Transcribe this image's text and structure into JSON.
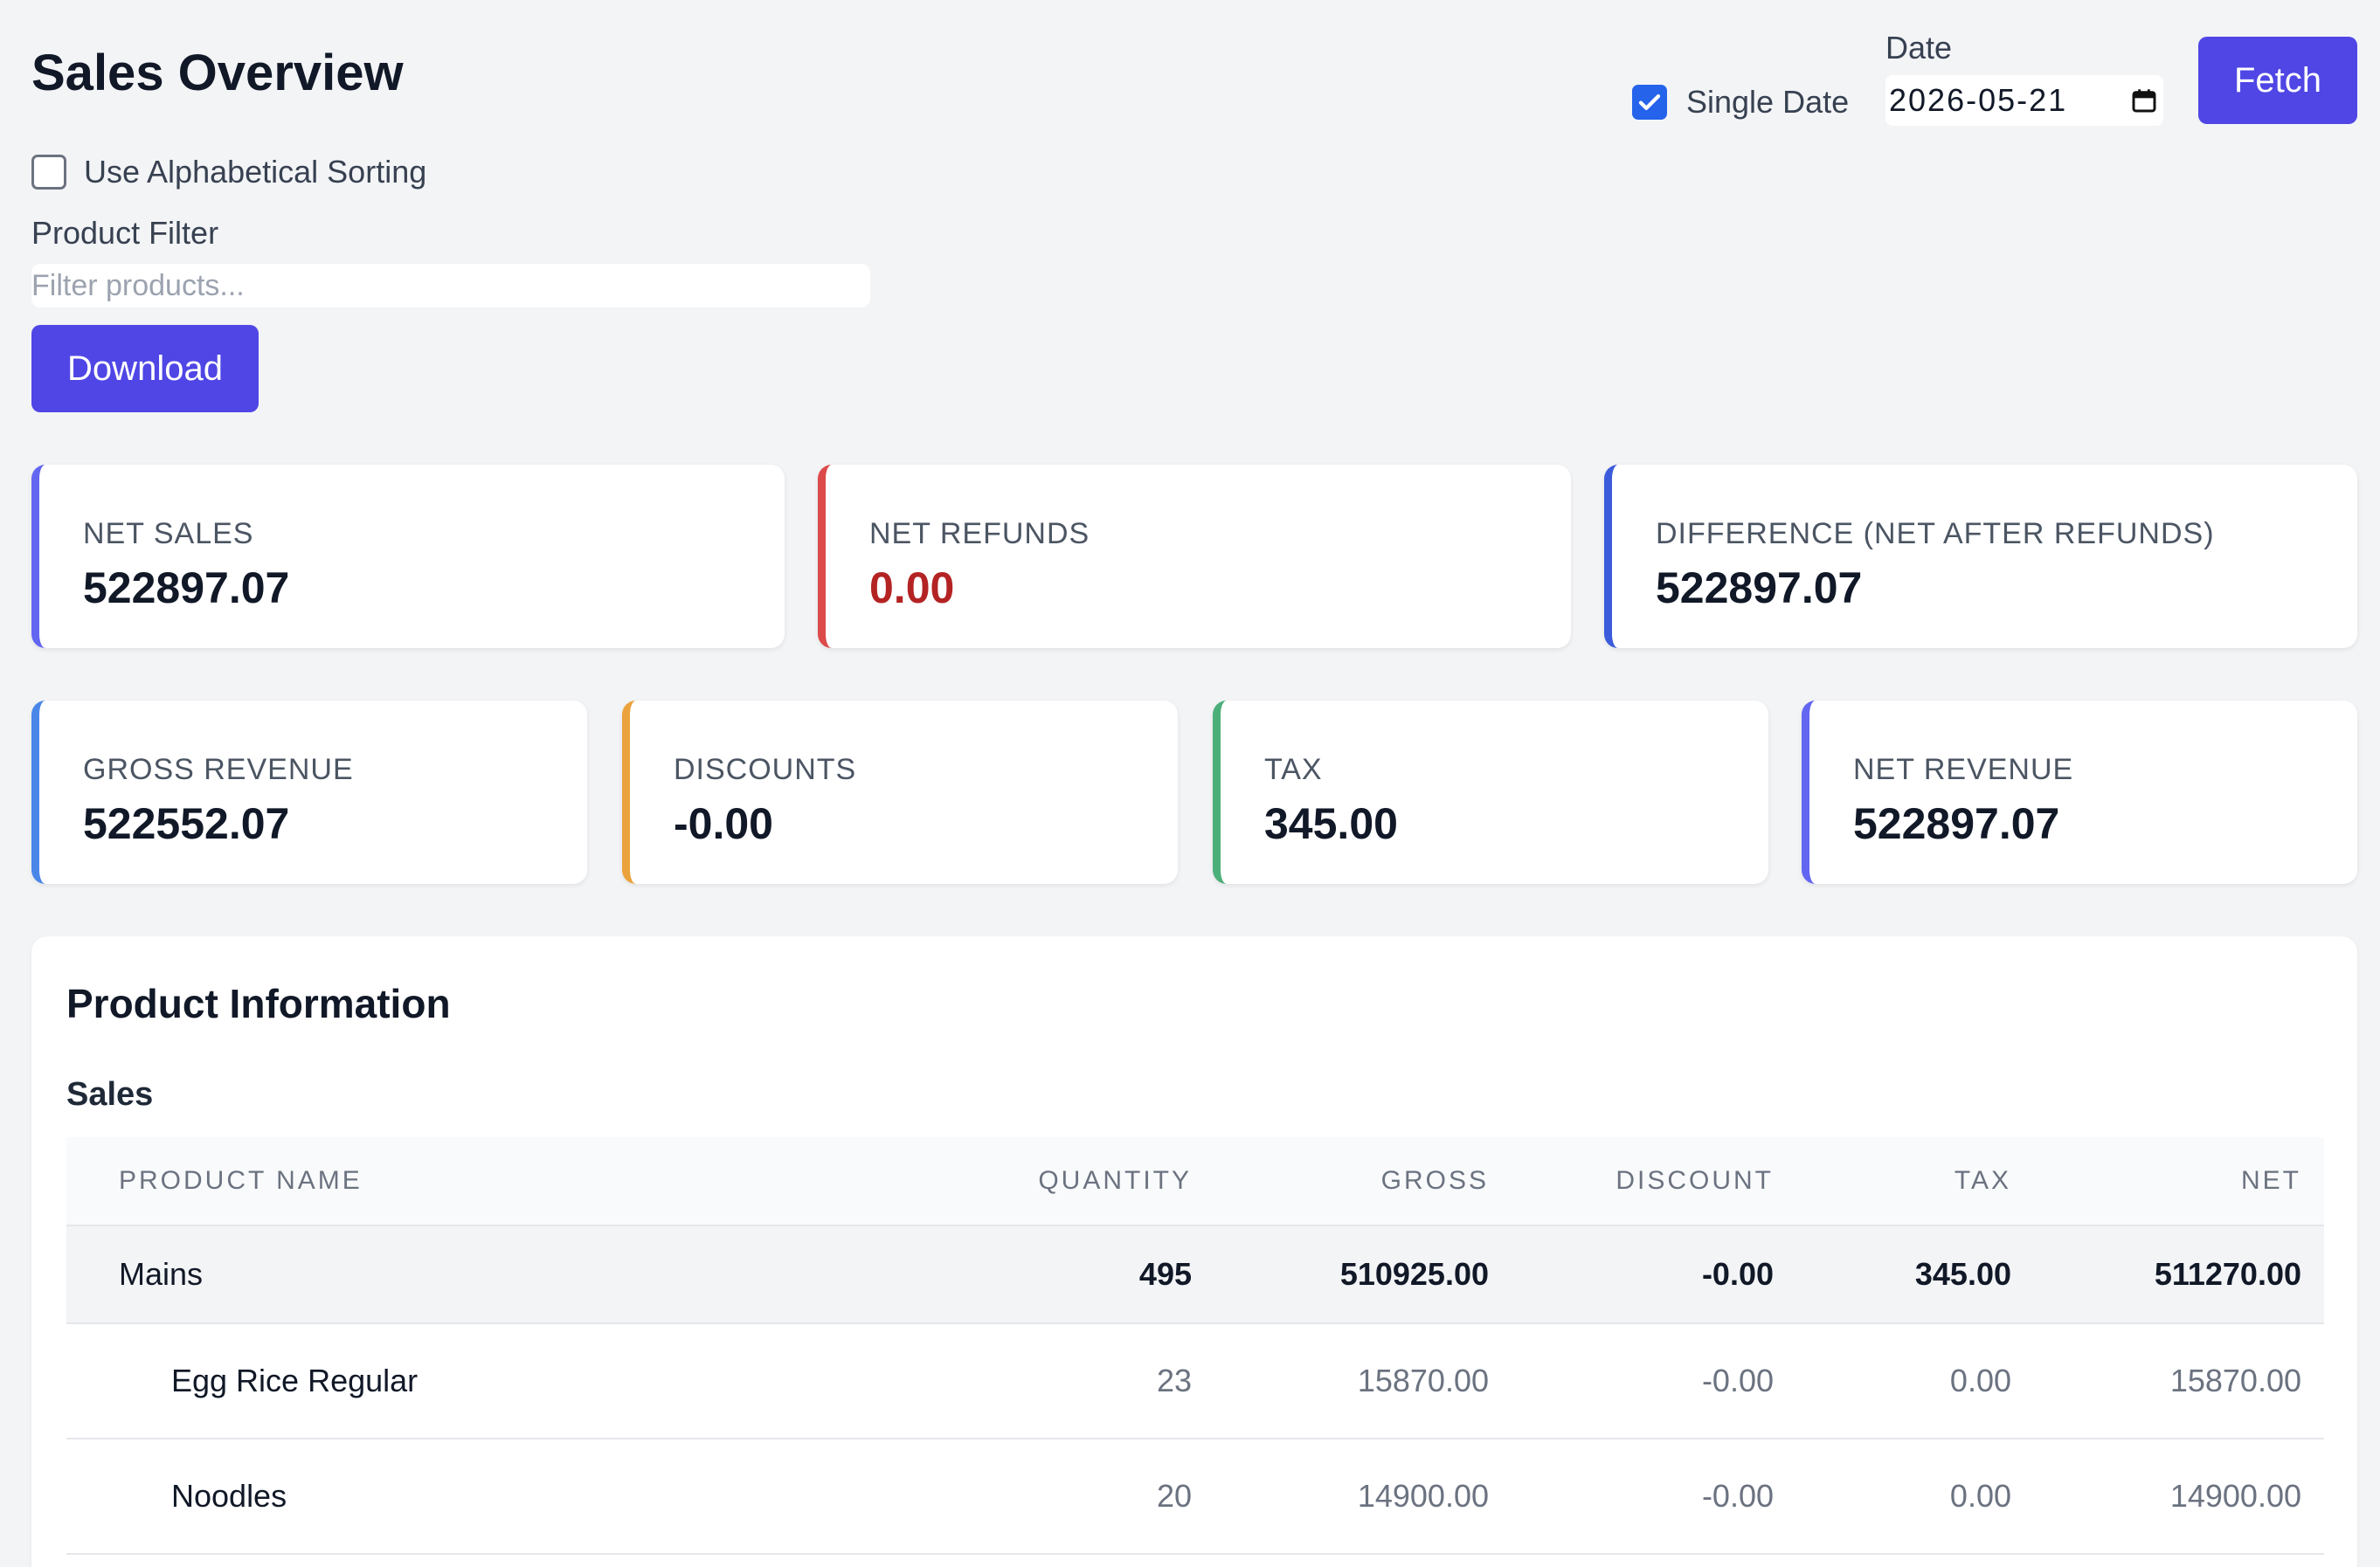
{
  "header": {
    "title": "Sales Overview",
    "alphabetical_sorting_label": "Use Alphabetical Sorting",
    "alphabetical_sorting_checked": false,
    "single_date_label": "Single Date",
    "single_date_checked": true,
    "date_label": "Date",
    "date_value": "2026-05-21",
    "fetch_label": "Fetch"
  },
  "filter": {
    "label": "Product Filter",
    "placeholder": "Filter products...",
    "value": ""
  },
  "download_label": "Download",
  "summary_cards": [
    {
      "label": "NET SALES",
      "value": "522897.07",
      "accent": "#6366f1",
      "value_color": "#111827"
    },
    {
      "label": "NET REFUNDS",
      "value": "0.00",
      "accent": "#dc4a4a",
      "value_color": "#b42323"
    },
    {
      "label": "DIFFERENCE (NET AFTER REFUNDS)",
      "value": "522897.07",
      "accent": "#3b5bdb",
      "value_color": "#111827"
    }
  ],
  "revenue_cards": [
    {
      "label": "GROSS REVENUE",
      "value": "522552.07",
      "accent": "#4a86e8",
      "value_color": "#111827"
    },
    {
      "label": "DISCOUNTS",
      "value": "-0.00",
      "accent": "#eba23c",
      "value_color": "#111827"
    },
    {
      "label": "TAX",
      "value": "345.00",
      "accent": "#4caf7a",
      "value_color": "#111827"
    },
    {
      "label": "NET REVENUE",
      "value": "522897.07",
      "accent": "#6366f1",
      "value_color": "#111827"
    }
  ],
  "product_info": {
    "title": "Product Information",
    "section": "Sales",
    "columns": [
      "PRODUCT NAME",
      "QUANTITY",
      "GROSS",
      "DISCOUNT",
      "TAX",
      "NET"
    ],
    "group_row": {
      "name": "Mains",
      "quantity": "495",
      "gross": "510925.00",
      "discount": "-0.00",
      "tax": "345.00",
      "net": "511270.00"
    },
    "items": [
      {
        "name": "Egg Rice Regular",
        "quantity": "23",
        "gross": "15870.00",
        "discount": "-0.00",
        "tax": "0.00",
        "net": "15870.00"
      },
      {
        "name": "Noodles",
        "quantity": "20",
        "gross": "14900.00",
        "discount": "-0.00",
        "tax": "0.00",
        "net": "14900.00"
      }
    ]
  }
}
